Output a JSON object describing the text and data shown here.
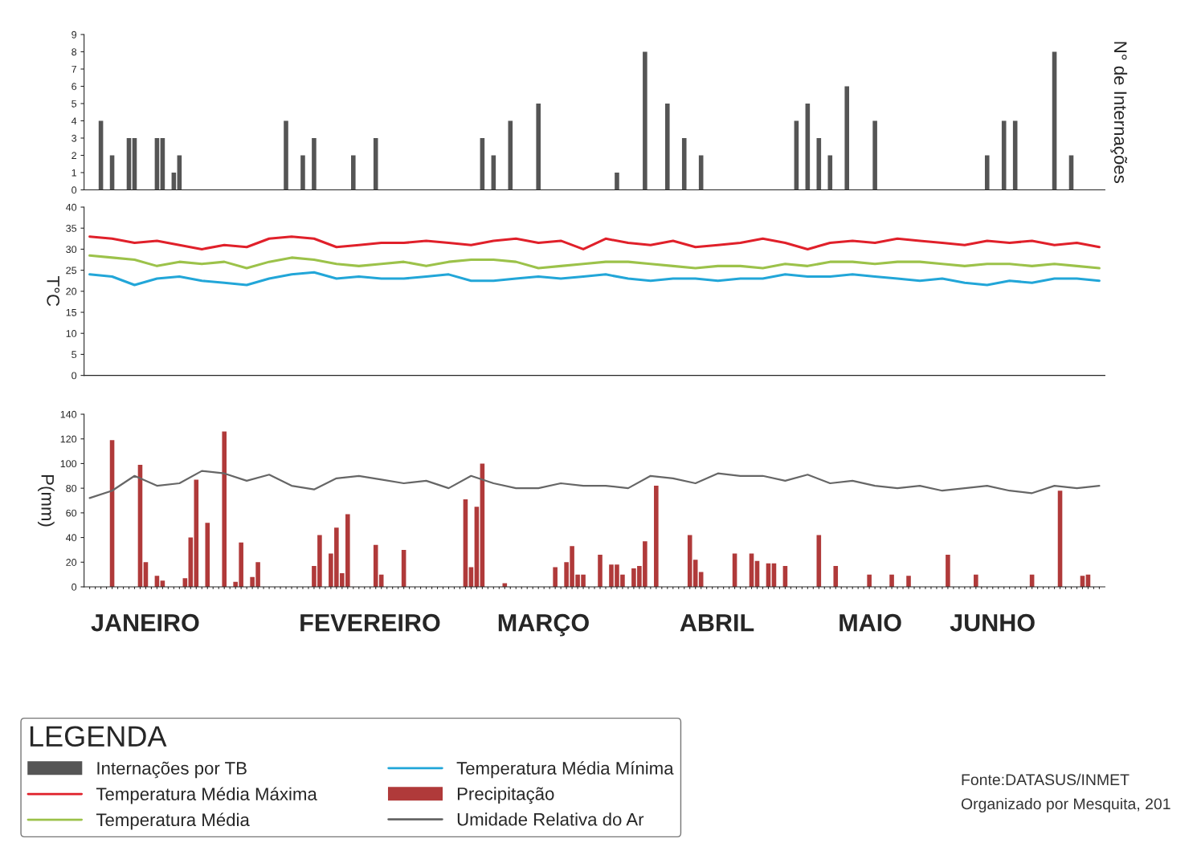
{
  "chart_data": [
    {
      "type": "bar",
      "ylabel": "N° de Internações",
      "categories": [
        null,
        null,
        null,
        null,
        null,
        null,
        null,
        null,
        null,
        null,
        null,
        null,
        null,
        null,
        null,
        null,
        null,
        null,
        null,
        null,
        null,
        null,
        null,
        null,
        null,
        null,
        null,
        null,
        null,
        null,
        null,
        null,
        null,
        null,
        null,
        null,
        null,
        null,
        null,
        null,
        null,
        null,
        null,
        null,
        null,
        null,
        null,
        null,
        null,
        null,
        null,
        null,
        null,
        null,
        null,
        null,
        null,
        null,
        null,
        null,
        null,
        null,
        null,
        null,
        null,
        null,
        null,
        null,
        null,
        null,
        null,
        null,
        null,
        null,
        null,
        null,
        null,
        null,
        null,
        null,
        null,
        null,
        null,
        null,
        null,
        null,
        null,
        null,
        null,
        null,
        null,
        null,
        null,
        null,
        null,
        null,
        null,
        null,
        null,
        null,
        null,
        null,
        null,
        null,
        null,
        null,
        null,
        null,
        null,
        null,
        null,
        null,
        null,
        null,
        null,
        null,
        null,
        null,
        null,
        null,
        null,
        null,
        null,
        null,
        null,
        null,
        null,
        null,
        null,
        null,
        null,
        null,
        null,
        null,
        null,
        null,
        null,
        null,
        null,
        null,
        null,
        null,
        null,
        null,
        null,
        null,
        null,
        null,
        null,
        null,
        null,
        null,
        null,
        null,
        null,
        null,
        null,
        null,
        null,
        null,
        null,
        null,
        null,
        null,
        null,
        null,
        null,
        null,
        null,
        null,
        null,
        null,
        null,
        null,
        null,
        null,
        null,
        null,
        null,
        null,
        null
      ],
      "ylim": [
        0,
        9
      ],
      "yticks": [
        0,
        1,
        2,
        3,
        4,
        5,
        6,
        7,
        8,
        9
      ],
      "tick_labels": "y",
      "grid": false,
      "legend": "bottom",
      "series": [
        {
          "name": "Internações por TB",
          "color": "#555555",
          "values": [
            null,
            null,
            4,
            null,
            2,
            null,
            null,
            3,
            3,
            null,
            null,
            null,
            3,
            3,
            null,
            1,
            2,
            null,
            null,
            null,
            null,
            null,
            null,
            null,
            null,
            null,
            null,
            null,
            null,
            null,
            null,
            null,
            null,
            null,
            null,
            4,
            null,
            null,
            2,
            null,
            3,
            null,
            null,
            null,
            null,
            null,
            null,
            2,
            null,
            null,
            null,
            3,
            null,
            null,
            null,
            null,
            null,
            null,
            null,
            null,
            null,
            null,
            null,
            null,
            null,
            null,
            null,
            null,
            null,
            null,
            3,
            null,
            2,
            null,
            null,
            4,
            null,
            null,
            null,
            null,
            5,
            null,
            null,
            null,
            null,
            null,
            null,
            null,
            null,
            null,
            null,
            null,
            null,
            null,
            1,
            null,
            null,
            null,
            null,
            8,
            null,
            null,
            null,
            5,
            null,
            null,
            3,
            null,
            null,
            2,
            null,
            null,
            null,
            null,
            null,
            null,
            null,
            null,
            null,
            null,
            null,
            null,
            null,
            null,
            null,
            null,
            4,
            null,
            5,
            null,
            3,
            null,
            2,
            null,
            null,
            6,
            null,
            null,
            null,
            null,
            4,
            null,
            null,
            null,
            null,
            null,
            null,
            null,
            null,
            null,
            null,
            null,
            null,
            null,
            null,
            null,
            null,
            null,
            null,
            null,
            2,
            null,
            null,
            4,
            null,
            4,
            null,
            null,
            null,
            null,
            null,
            null,
            8,
            null,
            null,
            2,
            null,
            null,
            null,
            null,
            null
          ]
        }
      ]
    },
    {
      "type": "line",
      "ylabel": "T°C",
      "categories": [
        null,
        null,
        null,
        null,
        null,
        null,
        null,
        null,
        null,
        null,
        null,
        null,
        null,
        null,
        null,
        null,
        null,
        null,
        null,
        null,
        null,
        null,
        null,
        null,
        null,
        null,
        null,
        null,
        null,
        null,
        null,
        null,
        null,
        null,
        null,
        null,
        null,
        null,
        null,
        null,
        null,
        null,
        null,
        null,
        null,
        null,
        null,
        null,
        null,
        null,
        null,
        null,
        null,
        null,
        null,
        null,
        null,
        null,
        null,
        null,
        null,
        null,
        null,
        null,
        null,
        null,
        null,
        null,
        null,
        null,
        null,
        null,
        null,
        null,
        null,
        null,
        null,
        null,
        null,
        null,
        null,
        null,
        null,
        null,
        null,
        null,
        null,
        null,
        null,
        null,
        null,
        null,
        null,
        null,
        null,
        null,
        null,
        null,
        null,
        null,
        null,
        null,
        null,
        null,
        null,
        null,
        null,
        null,
        null,
        null,
        null,
        null,
        null,
        null,
        null,
        null,
        null,
        null,
        null,
        null,
        null,
        null,
        null,
        null,
        null,
        null,
        null,
        null,
        null,
        null,
        null,
        null,
        null,
        null,
        null,
        null,
        null,
        null,
        null,
        null,
        null,
        null,
        null,
        null,
        null,
        null,
        null,
        null,
        null,
        null,
        null,
        null,
        null,
        null,
        null,
        null,
        null,
        null,
        null,
        null,
        null,
        null,
        null,
        null,
        null,
        null,
        null,
        null,
        null,
        null,
        null,
        null,
        null,
        null,
        null,
        null,
        null,
        null,
        null,
        null,
        null
      ],
      "ylim": [
        0,
        40
      ],
      "yticks": [
        0,
        5,
        10,
        15,
        20,
        25,
        30,
        35,
        40
      ],
      "tick_labels": "y",
      "grid": false,
      "legend": "bottom",
      "marker": "none",
      "line_style": "solid",
      "series": [
        {
          "name": "Temperatura Média Máxima",
          "color": "#e0202a",
          "values": [
            33,
            null,
            null,
            null,
            32.5,
            null,
            null,
            null,
            31.5,
            null,
            null,
            null,
            32,
            null,
            null,
            null,
            31,
            null,
            null,
            null,
            30,
            null,
            null,
            null,
            31,
            null,
            null,
            null,
            30.5,
            null,
            null,
            null,
            32.5,
            null,
            null,
            null,
            33,
            null,
            null,
            null,
            32.5,
            null,
            null,
            null,
            30.5,
            null,
            null,
            null,
            31,
            null,
            null,
            null,
            31.5,
            null,
            null,
            null,
            31.5,
            null,
            null,
            null,
            32,
            null,
            null,
            null,
            31.5,
            null,
            null,
            null,
            31,
            null,
            null,
            null,
            32,
            null,
            null,
            null,
            32.5,
            null,
            null,
            null,
            31.5,
            null,
            null,
            null,
            32,
            null,
            null,
            null,
            30,
            null,
            null,
            null,
            32.5,
            null,
            null,
            null,
            31.5,
            null,
            null,
            null,
            31,
            null,
            null,
            null,
            32,
            null,
            null,
            null,
            30.5,
            null,
            null,
            null,
            31,
            null,
            null,
            null,
            31.5,
            null,
            null,
            null,
            32.5,
            null,
            null,
            null,
            31.5,
            null,
            null,
            null,
            30,
            null,
            null,
            null,
            31.5,
            null,
            null,
            null,
            32,
            null,
            null,
            null,
            31.5,
            null,
            null,
            null,
            32.5,
            null,
            null,
            null,
            32,
            null,
            null,
            null,
            31.5,
            null,
            null,
            null,
            31,
            null,
            null,
            null,
            32,
            null,
            null,
            null,
            31.5,
            null,
            null,
            null,
            32,
            null,
            null,
            null,
            31,
            null,
            null,
            null,
            31.5,
            null,
            null,
            null,
            30.5
          ]
        },
        {
          "name": "Temperatura Média",
          "color": "#9cc24a",
          "values": [
            28.5,
            null,
            null,
            null,
            28,
            null,
            null,
            null,
            27.5,
            null,
            null,
            null,
            26,
            null,
            null,
            null,
            27,
            null,
            null,
            null,
            26.5,
            null,
            null,
            null,
            27,
            null,
            null,
            null,
            25.5,
            null,
            null,
            null,
            27,
            null,
            null,
            null,
            28,
            null,
            null,
            null,
            27.5,
            null,
            null,
            null,
            26.5,
            null,
            null,
            null,
            26,
            null,
            null,
            null,
            26.5,
            null,
            null,
            null,
            27,
            null,
            null,
            null,
            26,
            null,
            null,
            null,
            27,
            null,
            null,
            null,
            27.5,
            null,
            null,
            null,
            27.5,
            null,
            null,
            null,
            27,
            null,
            null,
            null,
            25.5,
            null,
            null,
            null,
            26,
            null,
            null,
            null,
            26.5,
            null,
            null,
            null,
            27,
            null,
            null,
            null,
            27,
            null,
            null,
            null,
            26.5,
            null,
            null,
            null,
            26,
            null,
            null,
            null,
            25.5,
            null,
            null,
            null,
            26,
            null,
            null,
            null,
            26,
            null,
            null,
            null,
            25.5,
            null,
            null,
            null,
            26.5,
            null,
            null,
            null,
            26,
            null,
            null,
            null,
            27,
            null,
            null,
            null,
            27,
            null,
            null,
            null,
            26.5,
            null,
            null,
            null,
            27,
            null,
            null,
            null,
            27,
            null,
            null,
            null,
            26.5,
            null,
            null,
            null,
            26,
            null,
            null,
            null,
            26.5,
            null,
            null,
            null,
            26.5,
            null,
            null,
            null,
            26,
            null,
            null,
            null,
            26.5,
            null,
            null,
            null,
            26,
            null,
            null,
            null,
            25.5
          ]
        },
        {
          "name": "Temperatura Média Mínima",
          "color": "#22a6d8",
          "values": [
            24,
            null,
            null,
            null,
            23.5,
            null,
            null,
            null,
            21.5,
            null,
            null,
            null,
            23,
            null,
            null,
            null,
            23.5,
            null,
            null,
            null,
            22.5,
            null,
            null,
            null,
            22,
            null,
            null,
            null,
            21.5,
            null,
            null,
            null,
            23,
            null,
            null,
            null,
            24,
            null,
            null,
            null,
            24.5,
            null,
            null,
            null,
            23,
            null,
            null,
            null,
            23.5,
            null,
            null,
            null,
            23,
            null,
            null,
            null,
            23,
            null,
            null,
            null,
            23.5,
            null,
            null,
            null,
            24,
            null,
            null,
            null,
            22.5,
            null,
            null,
            null,
            22.5,
            null,
            null,
            null,
            23,
            null,
            null,
            null,
            23.5,
            null,
            null,
            null,
            23,
            null,
            null,
            null,
            23.5,
            null,
            null,
            null,
            24,
            null,
            null,
            null,
            23,
            null,
            null,
            null,
            22.5,
            null,
            null,
            null,
            23,
            null,
            null,
            null,
            23,
            null,
            null,
            null,
            22.5,
            null,
            null,
            null,
            23,
            null,
            null,
            null,
            23,
            null,
            null,
            null,
            24,
            null,
            null,
            null,
            23.5,
            null,
            null,
            null,
            23.5,
            null,
            null,
            null,
            24,
            null,
            null,
            null,
            23.5,
            null,
            null,
            null,
            23,
            null,
            null,
            null,
            22.5,
            null,
            null,
            null,
            23,
            null,
            null,
            null,
            22,
            null,
            null,
            null,
            21.5,
            null,
            null,
            null,
            22.5,
            null,
            null,
            null,
            22,
            null,
            null,
            null,
            23,
            null,
            null,
            null,
            23,
            null,
            null,
            null,
            22.5
          ]
        }
      ]
    },
    {
      "type": "bar",
      "ylabel": "P(mm)",
      "categories": [
        null,
        null,
        null,
        null,
        null,
        null,
        null,
        null,
        null,
        null,
        null,
        null,
        null,
        null,
        null,
        null,
        null,
        null,
        null,
        null,
        null,
        null,
        null,
        null,
        null,
        null,
        null,
        null,
        null,
        null,
        null,
        null,
        null,
        null,
        null,
        null,
        null,
        null,
        null,
        null,
        null,
        null,
        null,
        null,
        null,
        null,
        null,
        null,
        null,
        null,
        null,
        null,
        null,
        null,
        null,
        null,
        null,
        null,
        null,
        null,
        null,
        null,
        null,
        null,
        null,
        null,
        null,
        null,
        null,
        null,
        null,
        null,
        null,
        null,
        null,
        null,
        null,
        null,
        null,
        null,
        null,
        null,
        null,
        null,
        null,
        null,
        null,
        null,
        null,
        null,
        null,
        null,
        null,
        null,
        null,
        null,
        null,
        null,
        null,
        null,
        null,
        null,
        null,
        null,
        null,
        null,
        null,
        null,
        null,
        null,
        null,
        null,
        null,
        null,
        null,
        null,
        null,
        null,
        null,
        null,
        null,
        null,
        null,
        null,
        null,
        null,
        null,
        null,
        null,
        null,
        null,
        null,
        null,
        null,
        null,
        null,
        null,
        null,
        null,
        null,
        null,
        null,
        null,
        null,
        null,
        null,
        null,
        null,
        null,
        null,
        null,
        null,
        null,
        null,
        null,
        null,
        null,
        null,
        null,
        null,
        null,
        null,
        null,
        null,
        null,
        null,
        null,
        null,
        null,
        null,
        null,
        null,
        null,
        null,
        null,
        null,
        null,
        null,
        null,
        null,
        null
      ],
      "ylim": [
        0,
        140
      ],
      "yticks": [
        0,
        20,
        40,
        60,
        80,
        100,
        120,
        140
      ],
      "grid": false,
      "legend": "bottom",
      "legend_title": "LEGENDA",
      "annotations": [
        "JANEIRO",
        "FEVEREIRO",
        "MARÇO",
        "ABRIL",
        "MAIO",
        "JUNHO",
        "Fonte:DATASUS/INMET",
        "Organizado por Mesquita, 201"
      ],
      "series": [
        {
          "name": "Precipitação",
          "type": "bar",
          "color": "#b03a3a",
          "values": [
            null,
            null,
            null,
            null,
            119,
            null,
            null,
            null,
            null,
            99,
            20,
            null,
            9,
            5,
            null,
            null,
            null,
            7,
            40,
            87,
            null,
            52,
            null,
            null,
            126,
            null,
            4,
            36,
            null,
            8,
            20,
            null,
            null,
            null,
            null,
            null,
            null,
            null,
            null,
            null,
            17,
            42,
            null,
            27,
            48,
            11,
            59,
            null,
            null,
            null,
            null,
            34,
            10,
            null,
            null,
            null,
            30,
            null,
            null,
            null,
            null,
            null,
            null,
            null,
            null,
            null,
            null,
            71,
            16,
            65,
            100,
            null,
            null,
            null,
            3,
            null,
            null,
            null,
            null,
            null,
            null,
            null,
            null,
            16,
            null,
            20,
            33,
            10,
            10,
            null,
            null,
            26,
            null,
            18,
            18,
            10,
            null,
            15,
            17,
            37,
            null,
            82,
            null,
            null,
            null,
            null,
            null,
            42,
            22,
            12,
            null,
            null,
            null,
            null,
            null,
            27,
            null,
            null,
            27,
            21,
            null,
            19,
            19,
            null,
            17,
            null,
            null,
            null,
            null,
            null,
            42,
            null,
            null,
            17,
            null,
            null,
            null,
            null,
            null,
            10,
            null,
            null,
            null,
            10,
            null,
            null,
            9,
            null,
            null,
            null,
            null,
            null,
            null,
            26,
            null,
            null,
            null,
            null,
            10,
            null,
            null,
            null,
            null,
            null,
            null,
            null,
            null,
            null,
            10,
            null,
            null,
            null,
            null,
            78,
            null,
            null,
            null,
            9,
            10,
            null,
            null
          ]
        },
        {
          "name": "Umidade Relativa do Ar",
          "type": "line",
          "color": "#666666",
          "values": [
            72,
            null,
            null,
            null,
            78,
            null,
            null,
            null,
            90,
            null,
            null,
            null,
            82,
            null,
            null,
            null,
            84,
            null,
            null,
            null,
            94,
            null,
            null,
            null,
            92,
            null,
            null,
            null,
            86,
            null,
            null,
            null,
            91,
            null,
            null,
            null,
            82,
            null,
            null,
            null,
            79,
            null,
            null,
            null,
            88,
            null,
            null,
            null,
            90,
            null,
            null,
            null,
            87,
            null,
            null,
            null,
            84,
            null,
            null,
            null,
            86,
            null,
            null,
            null,
            80,
            null,
            null,
            null,
            90,
            null,
            null,
            null,
            84,
            null,
            null,
            null,
            80,
            null,
            null,
            null,
            80,
            null,
            null,
            null,
            84,
            null,
            null,
            null,
            82,
            null,
            null,
            null,
            82,
            null,
            null,
            null,
            80,
            null,
            null,
            null,
            90,
            null,
            null,
            null,
            88,
            null,
            null,
            null,
            84,
            null,
            null,
            null,
            92,
            null,
            null,
            null,
            90,
            null,
            null,
            null,
            90,
            null,
            null,
            null,
            86,
            null,
            null,
            null,
            91,
            null,
            null,
            null,
            84,
            null,
            null,
            null,
            86,
            null,
            null,
            null,
            82,
            null,
            null,
            null,
            80,
            null,
            null,
            null,
            82,
            null,
            null,
            null,
            78,
            null,
            null,
            null,
            80,
            null,
            null,
            null,
            82,
            null,
            null,
            null,
            78,
            null,
            null,
            null,
            76,
            null,
            null,
            null,
            82,
            null,
            null,
            null,
            80,
            null,
            null,
            null,
            82
          ]
        }
      ]
    }
  ]
}
